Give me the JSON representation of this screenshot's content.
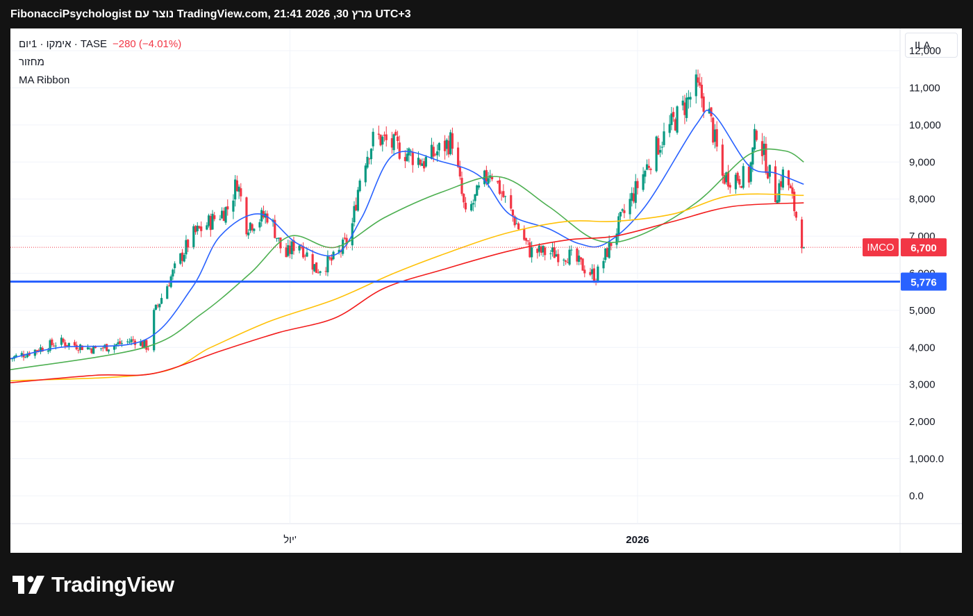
{
  "header": {
    "text": "FibonacciPsychologist נוצר עם TradingView.com, 21:41 2026 ,30 מרץ UTC+3"
  },
  "legend": {
    "symbol_line": "אימקו · 1יום · TASE",
    "change": "−280 (−4.01%)",
    "indicator_1": "מחזור",
    "indicator_2": "MA Ribbon"
  },
  "currency_button": "ILA",
  "price_labels": {
    "ticker": "IMCO",
    "last_price": "6,700",
    "line_price": "5,776"
  },
  "brand": {
    "name": "TradingView"
  },
  "colors": {
    "up": "#089981",
    "down": "#f23645",
    "ma_fast": "#2962ff",
    "ma_2": "#4caf50",
    "ma_3": "#ffc107",
    "ma_slow": "#f21c1c",
    "hline": "#2962ff",
    "background_dark": "#131313"
  },
  "chart_data": {
    "type": "candlestick",
    "title": "",
    "y_axis": {
      "ticks": [
        0,
        1000,
        2000,
        3000,
        4000,
        5000,
        6000,
        7000,
        8000,
        9000,
        10000,
        11000,
        12000
      ],
      "tick_labels": [
        "0.0",
        "1,000.0",
        "2,000",
        "3,000",
        "4,000",
        "5,000",
        "6,000",
        "7,000",
        "8,000",
        "9,000",
        "10,000",
        "11,000",
        "12,000"
      ],
      "ylim": [
        -750,
        12600
      ]
    },
    "x_axis": {
      "range": [
        "2025-02-03",
        "2026-05-20"
      ],
      "labels": [
        {
          "label": "יול'",
          "date": "2025-07-01"
        },
        {
          "label": "2026",
          "date": "2026-01-01"
        }
      ]
    },
    "horizontal_line": 5776,
    "last_price": 6700,
    "candles_approx": [
      {
        "date": "2025-02-03",
        "close": 3700
      },
      {
        "date": "2025-03-01",
        "close": 4150
      },
      {
        "date": "2025-03-20",
        "close": 3950
      },
      {
        "date": "2025-04-10",
        "close": 4200
      },
      {
        "date": "2025-04-17",
        "close": 4000
      },
      {
        "date": "2025-04-20",
        "close": 4900
      },
      {
        "date": "2025-04-28",
        "close": 5800
      },
      {
        "date": "2025-05-10",
        "close": 7000
      },
      {
        "date": "2025-05-30",
        "close": 7800
      },
      {
        "date": "2025-06-03",
        "close": 8500
      },
      {
        "date": "2025-06-08",
        "close": 7300
      },
      {
        "date": "2025-06-20",
        "close": 7600
      },
      {
        "date": "2025-06-28",
        "close": 6400
      },
      {
        "date": "2025-07-05",
        "close": 6900
      },
      {
        "date": "2025-07-15",
        "close": 6100
      },
      {
        "date": "2025-07-25",
        "close": 6400
      },
      {
        "date": "2025-08-02",
        "close": 7000
      },
      {
        "date": "2025-08-08",
        "close": 8900
      },
      {
        "date": "2025-08-15",
        "close": 9700
      },
      {
        "date": "2025-09-10",
        "close": 9000
      },
      {
        "date": "2025-09-25",
        "close": 9600
      },
      {
        "date": "2025-10-02",
        "close": 7500
      },
      {
        "date": "2025-10-15",
        "close": 8800
      },
      {
        "date": "2025-11-05",
        "close": 6600
      },
      {
        "date": "2025-11-25",
        "close": 6500
      },
      {
        "date": "2025-12-10",
        "close": 5900
      },
      {
        "date": "2025-12-22",
        "close": 7300
      },
      {
        "date": "2026-01-10",
        "close": 9300
      },
      {
        "date": "2026-02-01",
        "close": 11000
      },
      {
        "date": "2026-02-07",
        "close": 10500
      },
      {
        "date": "2026-02-15",
        "close": 8600
      },
      {
        "date": "2026-03-01",
        "close": 8600
      },
      {
        "date": "2026-03-05",
        "close": 9900
      },
      {
        "date": "2026-03-15",
        "close": 8100
      },
      {
        "date": "2026-03-20",
        "close": 8800
      },
      {
        "date": "2026-03-30",
        "close": 6700
      }
    ],
    "series": [
      {
        "type": "line",
        "color": "#2962ff",
        "points": [
          [
            "2025-02-03",
            3700
          ],
          [
            "2025-03-01",
            4000
          ],
          [
            "2025-04-15",
            4200
          ],
          [
            "2025-05-10",
            5600
          ],
          [
            "2025-05-25",
            7000
          ],
          [
            "2025-06-15",
            7600
          ],
          [
            "2025-07-05",
            6800
          ],
          [
            "2025-07-25",
            6500
          ],
          [
            "2025-08-08",
            7500
          ],
          [
            "2025-08-25",
            9200
          ],
          [
            "2025-09-20",
            9000
          ],
          [
            "2025-10-10",
            8600
          ],
          [
            "2025-10-25",
            7600
          ],
          [
            "2025-11-15",
            7200
          ],
          [
            "2025-12-01",
            6800
          ],
          [
            "2025-12-15",
            6800
          ],
          [
            "2026-01-05",
            7800
          ],
          [
            "2026-02-01",
            10000
          ],
          [
            "2026-02-10",
            10300
          ],
          [
            "2026-03-01",
            8900
          ],
          [
            "2026-03-15",
            8700
          ],
          [
            "2026-03-30",
            8400
          ]
        ]
      },
      {
        "type": "line",
        "color": "#4caf50",
        "points": [
          [
            "2025-02-03",
            3400
          ],
          [
            "2025-04-15",
            4000
          ],
          [
            "2025-05-15",
            4900
          ],
          [
            "2025-06-10",
            6000
          ],
          [
            "2025-07-01",
            7000
          ],
          [
            "2025-07-25",
            6700
          ],
          [
            "2025-08-20",
            7500
          ],
          [
            "2025-09-20",
            8200
          ],
          [
            "2025-10-20",
            8600
          ],
          [
            "2025-11-15",
            7800
          ],
          [
            "2025-12-10",
            6900
          ],
          [
            "2026-01-01",
            7000
          ],
          [
            "2026-02-01",
            7900
          ],
          [
            "2026-03-01",
            9200
          ],
          [
            "2026-03-20",
            9300
          ],
          [
            "2026-03-30",
            9000
          ]
        ]
      },
      {
        "type": "line",
        "color": "#ffc107",
        "points": [
          [
            "2025-02-03",
            3100
          ],
          [
            "2025-04-20",
            3300
          ],
          [
            "2025-05-20",
            4000
          ],
          [
            "2025-06-20",
            4700
          ],
          [
            "2025-07-25",
            5300
          ],
          [
            "2025-08-25",
            6000
          ],
          [
            "2025-09-25",
            6600
          ],
          [
            "2025-10-25",
            7100
          ],
          [
            "2025-11-25",
            7400
          ],
          [
            "2025-12-20",
            7400
          ],
          [
            "2026-01-20",
            7600
          ],
          [
            "2026-02-20",
            8100
          ],
          [
            "2026-03-30",
            8100
          ]
        ]
      },
      {
        "type": "line",
        "color": "#f21c1c",
        "points": [
          [
            "2025-02-03",
            3050
          ],
          [
            "2025-03-20",
            3250
          ],
          [
            "2025-04-20",
            3300
          ],
          [
            "2025-05-25",
            3900
          ],
          [
            "2025-06-25",
            4400
          ],
          [
            "2025-07-25",
            4800
          ],
          [
            "2025-08-20",
            5600
          ],
          [
            "2025-09-20",
            6100
          ],
          [
            "2025-10-25",
            6600
          ],
          [
            "2025-11-25",
            6900
          ],
          [
            "2025-12-20",
            7000
          ],
          [
            "2026-01-20",
            7400
          ],
          [
            "2026-02-20",
            7800
          ],
          [
            "2026-03-30",
            7900
          ]
        ]
      }
    ]
  }
}
